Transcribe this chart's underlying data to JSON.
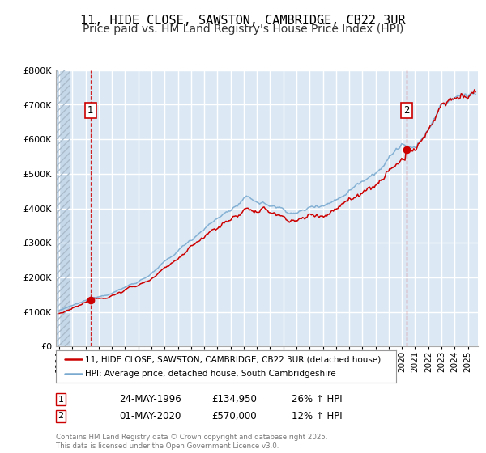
{
  "title": "11, HIDE CLOSE, SAWSTON, CAMBRIDGE, CB22 3UR",
  "subtitle": "Price paid vs. HM Land Registry's House Price Index (HPI)",
  "ylim": [
    0,
    800000
  ],
  "yticks": [
    0,
    100000,
    200000,
    300000,
    400000,
    500000,
    600000,
    700000,
    800000
  ],
  "xlim_start": 1993.75,
  "xlim_end": 2025.75,
  "red_line_color": "#cc0000",
  "blue_line_color": "#7aaad0",
  "background_color": "#dce9f5",
  "grid_color": "#ffffff",
  "sale1_x": 1996.37,
  "sale1_y": 134950,
  "sale2_x": 2020.33,
  "sale2_y": 570000,
  "legend_label1": "11, HIDE CLOSE, SAWSTON, CAMBRIDGE, CB22 3UR (detached house)",
  "legend_label2": "HPI: Average price, detached house, South Cambridgeshire",
  "sale1_date": "24-MAY-1996",
  "sale1_price": "£134,950",
  "sale1_hpi": "26% ↑ HPI",
  "sale2_date": "01-MAY-2020",
  "sale2_price": "£570,000",
  "sale2_hpi": "12% ↑ HPI",
  "footer": "Contains HM Land Registry data © Crown copyright and database right 2025.\nThis data is licensed under the Open Government Licence v3.0.",
  "title_fontsize": 11,
  "subtitle_fontsize": 10,
  "hatch_end": 1994.83
}
